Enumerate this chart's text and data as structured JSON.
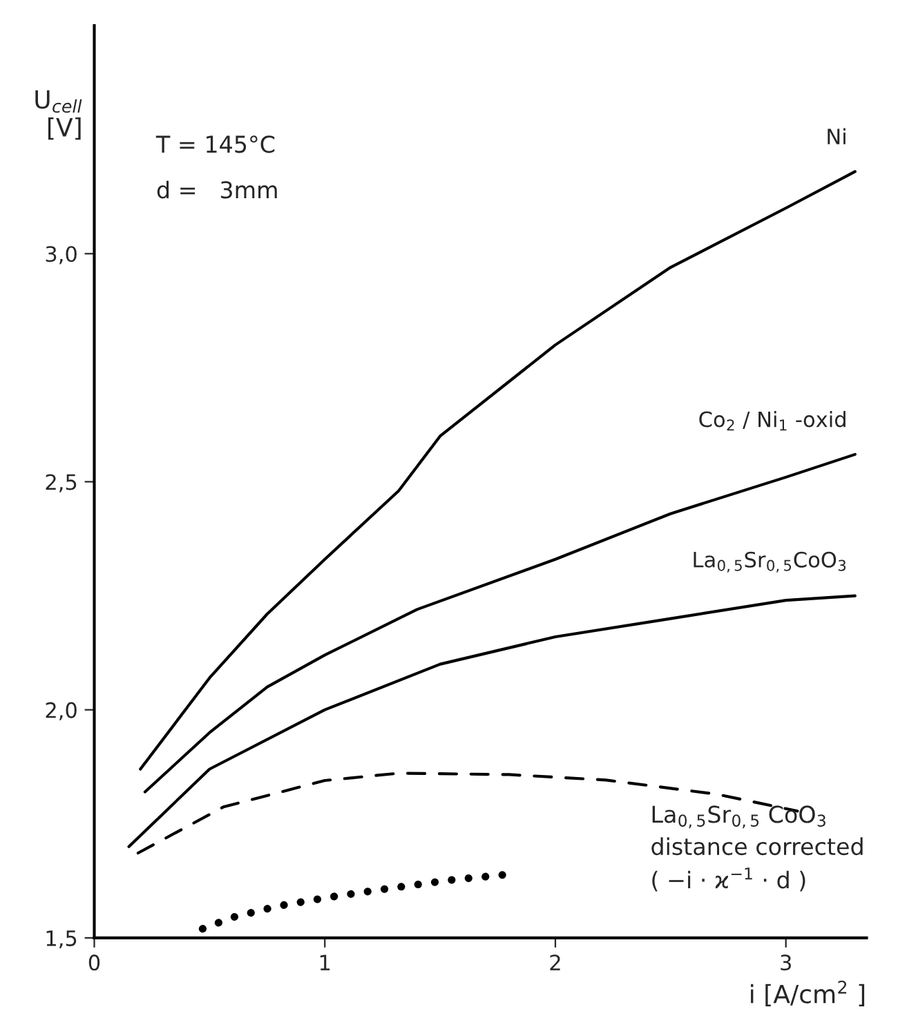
{
  "chart_data": {
    "type": "line",
    "xlabel": "i [A/cm$^{2}$ ]",
    "ylabel": "U$_{cell}$\n[V]",
    "annotations": [
      "T = 145°C",
      "d =   3mm",
      "La$_{0,5}$Sr$_{0,5}$ CoO$_{3}$\ndistance corrected\n( −i · ϰ$^{−1}$ · d )"
    ],
    "xlim": [
      0,
      3.35
    ],
    "ylim": [
      1.5,
      3.5
    ],
    "xticks": [
      0,
      1,
      2,
      3
    ],
    "yticks": [
      {
        "value": 1.5,
        "label": "1,5"
      },
      {
        "value": 2.0,
        "label": "2,0"
      },
      {
        "value": 2.5,
        "label": "2,5"
      },
      {
        "value": 3.0,
        "label": "3,0"
      }
    ],
    "grid": false,
    "legend": false,
    "marker": "none",
    "series": [
      {
        "name": "Ni",
        "color": "#000000",
        "line_style": "solid",
        "x": [
          0.2,
          0.5,
          0.75,
          1.0,
          1.32,
          1.5,
          2.0,
          2.5,
          3.0,
          3.3
        ],
        "values": [
          1.87,
          2.07,
          2.21,
          2.33,
          2.48,
          2.6,
          2.8,
          2.97,
          3.1,
          3.18
        ]
      },
      {
        "name": "Co$_{2}$ / Ni$_{1}$ -oxid",
        "color": "#000000",
        "line_style": "solid",
        "x": [
          0.22,
          0.5,
          0.75,
          1.0,
          1.4,
          2.0,
          2.5,
          3.0,
          3.3
        ],
        "values": [
          1.82,
          1.95,
          2.05,
          2.12,
          2.22,
          2.33,
          2.43,
          2.51,
          2.56
        ]
      },
      {
        "name": "La$_{0,5}$Sr$_{0,5}$CoO$_{3}$",
        "color": "#000000",
        "line_style": "solid",
        "x": [
          0.15,
          0.5,
          1.0,
          1.5,
          2.0,
          2.5,
          3.0,
          3.3
        ],
        "values": [
          1.7,
          1.87,
          2.0,
          2.1,
          2.16,
          2.2,
          2.24,
          2.25
        ]
      },
      {
        "color": "#000000",
        "line_style": "dashed",
        "x": [
          0.19,
          0.56,
          1.0,
          1.32,
          1.8,
          2.22,
          2.7,
          3.05
        ],
        "values": [
          1.686,
          1.787,
          1.845,
          1.861,
          1.858,
          1.846,
          1.815,
          1.778
        ]
      },
      {
        "color": "#000000",
        "line_style": "dotted",
        "x": [
          0.47,
          0.6,
          0.8,
          1.03,
          1.3,
          1.55,
          1.77
        ],
        "values": [
          1.52,
          1.545,
          1.57,
          1.59,
          1.61,
          1.627,
          1.638
        ]
      }
    ]
  }
}
